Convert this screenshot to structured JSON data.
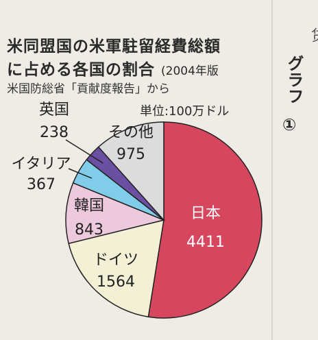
{
  "header": {
    "title_line1": "米同盟国の米軍駐留経費総額",
    "title_line2": "に占める各国の割合",
    "title_year": "(2004年版",
    "source": "米国防総省「貢献度報告」から",
    "unit": "単位:100万ドル"
  },
  "side": {
    "graph_label": "グラフ",
    "graph_number": "①",
    "edge_text": "贷"
  },
  "colors": {
    "japan": "#d6475f",
    "germany": "#f4f0d6",
    "korea": "#ecc9dc",
    "italy": "#7fcde9",
    "uk": "#6b4fa2",
    "others": "#dcdcdc",
    "stroke": "#222222"
  },
  "chart_data": {
    "type": "pie",
    "title": "米同盟国の米軍駐留経費総額に占める各国の割合",
    "unit": "単位:100万ドル",
    "slices": [
      {
        "label": "日本",
        "value": 4411
      },
      {
        "label": "ドイツ",
        "value": 1564
      },
      {
        "label": "韓国",
        "value": 843
      },
      {
        "label": "イタリア",
        "value": 367
      },
      {
        "label": "英国",
        "value": 238
      },
      {
        "label": "その他",
        "value": 975
      }
    ]
  }
}
